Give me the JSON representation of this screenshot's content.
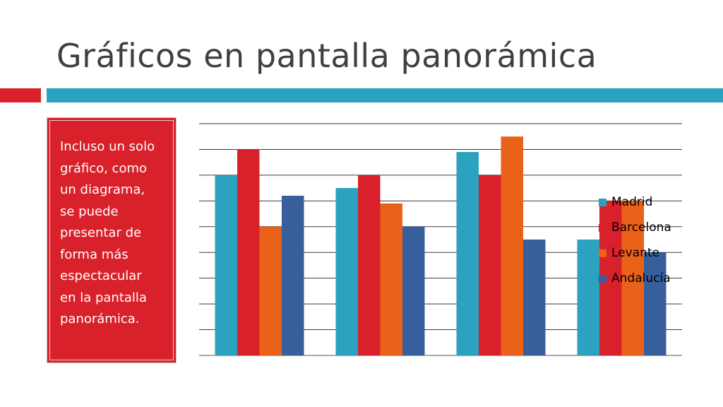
{
  "slide": {
    "title": "Gráficos en pantalla panorámica",
    "body": "Incluso un solo\ngráfico, como\nun diagrama,\nse puede\npresentar de\nforma más\nespectacular\nen la pantalla\npanorámica."
  },
  "colors": {
    "accent_red": "#d9212b",
    "accent_blue": "#2ba2c0",
    "title_text": "#3f3f3f"
  },
  "chart_data": {
    "type": "bar",
    "categories": [
      "",
      "",
      "",
      ""
    ],
    "series": [
      {
        "name": "Madrid",
        "color": "#2ba2c0",
        "values": [
          7,
          6.5,
          7.9,
          4.5
        ]
      },
      {
        "name": "Barcelona",
        "color": "#d9212b",
        "values": [
          8,
          7,
          7,
          6
        ]
      },
      {
        "name": "Levante",
        "color": "#ea6119",
        "values": [
          5,
          5.9,
          8.5,
          6
        ]
      },
      {
        "name": "Andalucía",
        "color": "#365f9c",
        "values": [
          6.2,
          5,
          4.5,
          4
        ]
      }
    ],
    "title": "",
    "xlabel": "",
    "ylabel": "",
    "ylim": [
      0,
      9
    ],
    "gridlines": true,
    "legend_position": "right"
  }
}
